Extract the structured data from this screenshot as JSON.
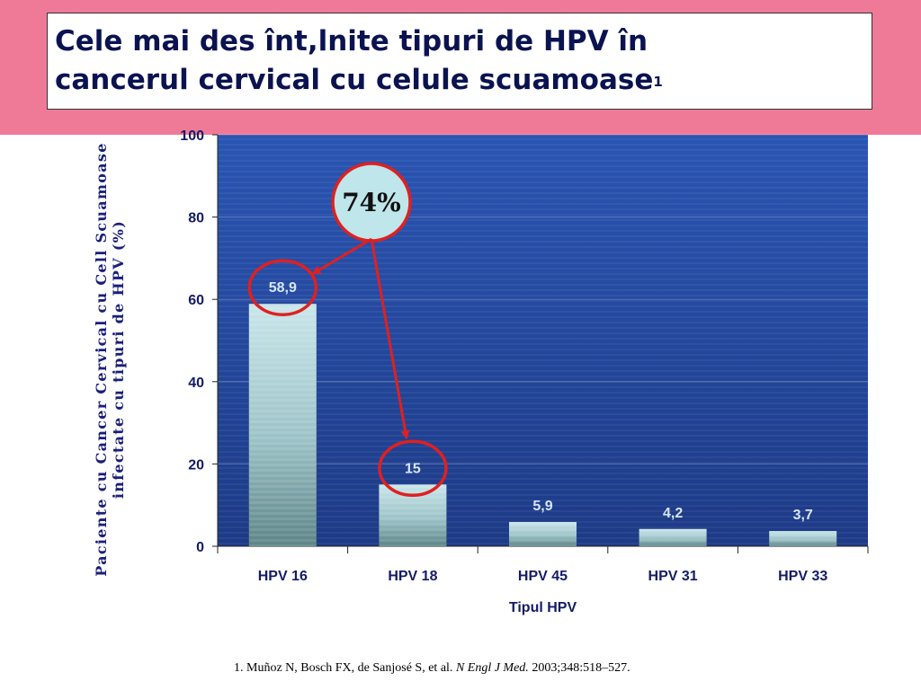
{
  "slide": {
    "title_line1": "Cele mai des înt,lnite tipuri de HPV în",
    "title_line2": "cancerul cervical cu celule scuamoase",
    "title_sup": "1",
    "ylabel_line1": "Paciente cu Cancer Cervical cu Cell Scuamoase",
    "ylabel_line2": "infectate cu tipuri de HPV (%)",
    "callout": "74%",
    "footnote_pre": "1. Muñoz N, Bosch FX, de Sanjosé S, et al.",
    "footnote_journal": "N Engl J Med.",
    "footnote_post": "2003;348:518–527.",
    "colors": {
      "band": "#ef7a98",
      "plot_bg": "#3159b0",
      "title": "#0a1350",
      "axis_text": "#141b66",
      "annotation": "#e02020"
    }
  },
  "chart_data": {
    "type": "bar",
    "categories": [
      "HPV 16",
      "HPV 18",
      "HPV 45",
      "HPV 31",
      "HPV 33"
    ],
    "values": [
      58.9,
      15,
      5.9,
      4.2,
      3.7
    ],
    "value_labels": [
      "58,9",
      "15",
      "5,9",
      "4,2",
      "3,7"
    ],
    "xlabel": "Tipul HPV",
    "ylabel": "Paciente cu Cancer Cervical cu Cell Scuamoase infectate cu tipuri de HPV (%)",
    "ylim": [
      0,
      100
    ],
    "yticks": [
      0,
      20,
      40,
      60,
      80,
      100
    ],
    "grid": true,
    "annotation": {
      "text": "74%",
      "highlights": [
        "HPV 16",
        "HPV 18"
      ]
    }
  }
}
